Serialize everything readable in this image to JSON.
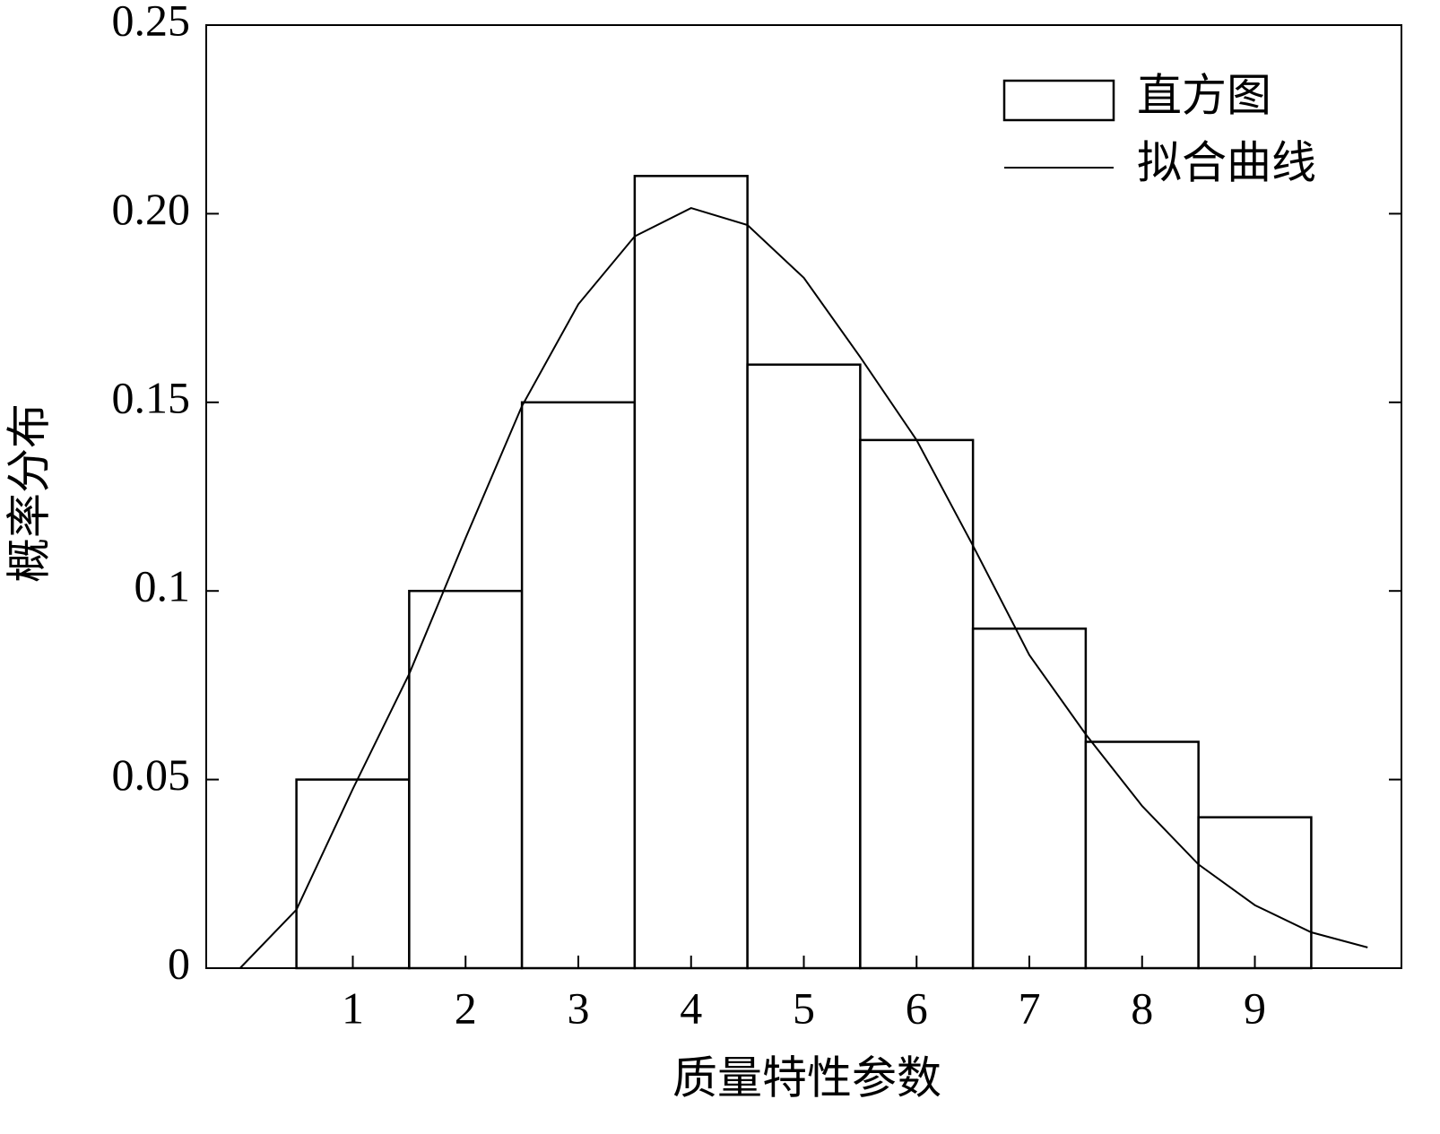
{
  "chart_data": {
    "type": "histogram",
    "xlabel": "质量特性参数",
    "ylabel": "概率分布",
    "xlim": [
      -0.3,
      10.3
    ],
    "ylim": [
      0,
      0.25
    ],
    "xticks": [
      1,
      2,
      3,
      4,
      5,
      6,
      7,
      8,
      9
    ],
    "yticks": [
      0,
      0.05,
      0.1,
      0.15,
      {
        "value": 0.2,
        "label": "0.20"
      },
      0.25
    ],
    "legend": "upper right",
    "series": [
      {
        "type": "histogram",
        "name": "直方图",
        "color": "#000000",
        "bins": [
          0.5,
          1.5,
          2.5,
          3.5,
          4.5,
          5.5,
          6.5,
          7.5,
          8.5,
          9.5
        ],
        "values": [
          0.05,
          0.1,
          0.15,
          0.21,
          0.16,
          0.14,
          0.09,
          0.06,
          0.04
        ]
      },
      {
        "type": "line",
        "name": "拟合曲线",
        "color": "#000000",
        "x": [
          0,
          0.5,
          1,
          1.5,
          2,
          2.5,
          3,
          3.5,
          4,
          4.5,
          5,
          5.5,
          6,
          6.5,
          7,
          7.5,
          8,
          8.5,
          9,
          9.5,
          10
        ],
        "values": [
          0,
          0.0155,
          0.0475,
          0.078,
          0.114,
          0.149,
          0.176,
          0.194,
          0.2015,
          0.197,
          0.183,
          0.162,
          0.14,
          0.112,
          0.083,
          0.062,
          0.043,
          0.0275,
          0.0167,
          0.0095,
          0.0055
        ]
      }
    ]
  }
}
